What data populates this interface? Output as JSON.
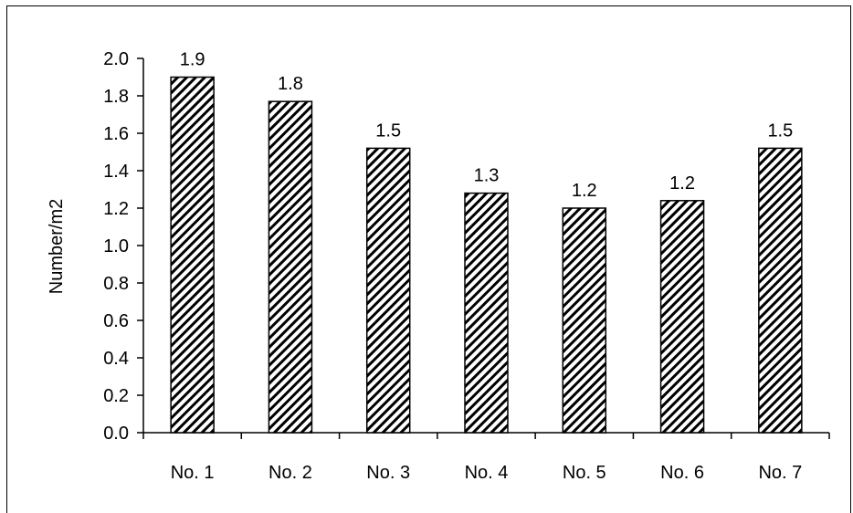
{
  "chart_data": {
    "type": "bar",
    "categories": [
      "No. 1",
      "No. 2",
      "No. 3",
      "No. 4",
      "No. 5",
      "No. 6",
      "No. 7"
    ],
    "values": [
      1.9,
      1.77,
      1.52,
      1.28,
      1.2,
      1.24,
      1.52
    ],
    "data_labels": [
      "1.9",
      "1.8",
      "1.5",
      "1.3",
      "1.2",
      "1.2",
      "1.5"
    ],
    "ylabel": "Number/m2",
    "ylim": [
      0,
      2.0
    ],
    "yticks": [
      0.0,
      0.2,
      0.4,
      0.6,
      0.8,
      1.0,
      1.2,
      1.4,
      1.6,
      1.8,
      2.0
    ],
    "ytick_labels": [
      "0.0",
      "0.2",
      "0.4",
      "0.6",
      "0.8",
      "1.0",
      "1.2",
      "1.4",
      "1.6",
      "1.8",
      "2.0"
    ],
    "grid": false,
    "legend": "none",
    "bar_fill": "diagonal-hatch",
    "colors": {
      "bar_stroke": "#000000",
      "hatch": "#000000",
      "background": "#ffffff"
    }
  }
}
